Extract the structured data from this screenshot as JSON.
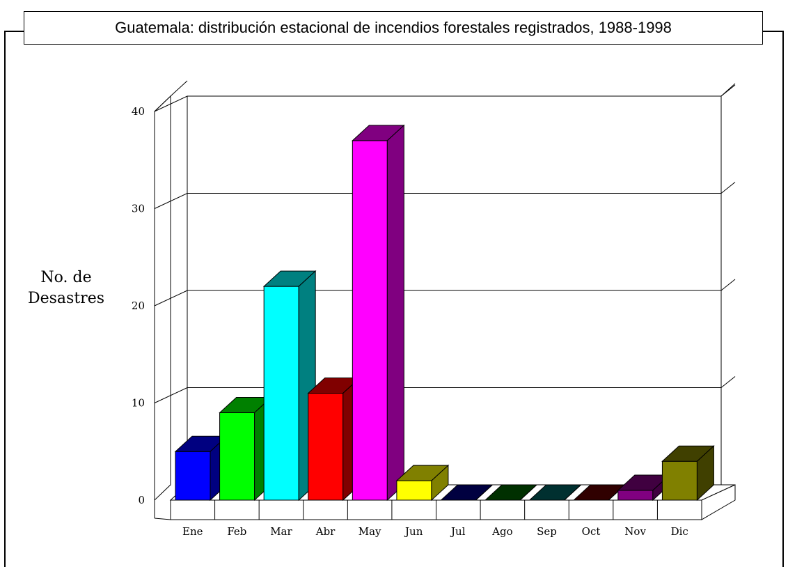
{
  "chart_data": {
    "type": "bar",
    "title": "Guatemala: distribución estacional de incendios forestales registrados, 1988-1998",
    "ylabel": [
      "No. de",
      "Desastres"
    ],
    "categories": [
      "Ene",
      "Feb",
      "Mar",
      "Abr",
      "May",
      "Jun",
      "Jul",
      "Ago",
      "Sep",
      "Oct",
      "Nov",
      "Dic"
    ],
    "values": [
      5,
      9,
      22,
      11,
      37,
      2,
      0,
      0,
      0,
      0,
      1,
      4
    ],
    "front_colors": [
      "#0000ff",
      "#00ff00",
      "#00ffff",
      "#ff0000",
      "#ff00ff",
      "#ffff00",
      "#000080",
      "#004000",
      "#004040",
      "#400000",
      "#800080",
      "#808000"
    ],
    "side_colors": [
      "#000080",
      "#008000",
      "#008080",
      "#800000",
      "#800080",
      "#808000",
      "#000040",
      "#003000",
      "#003030",
      "#300000",
      "#400040",
      "#404000"
    ],
    "yticks": [
      0,
      10,
      20,
      30,
      40
    ],
    "ylim": [
      0,
      40
    ],
    "grid": true,
    "legend": "none"
  }
}
